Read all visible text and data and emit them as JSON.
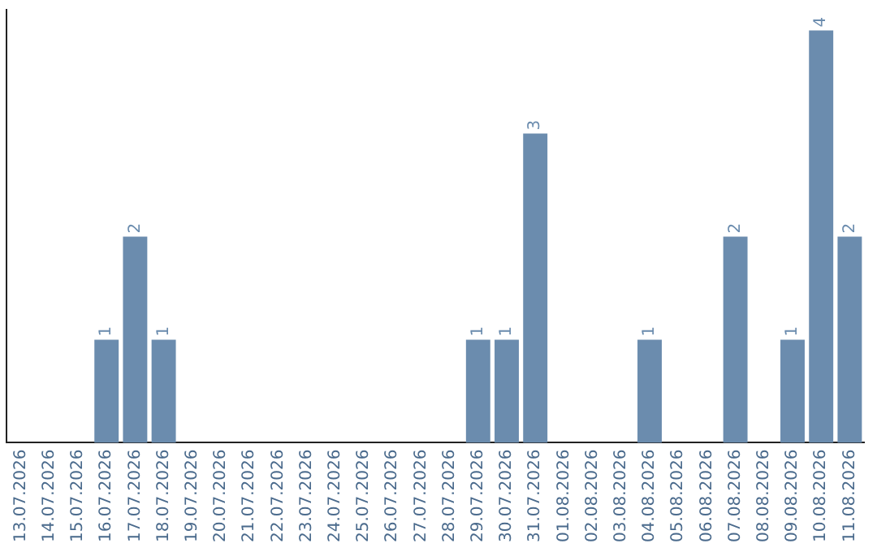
{
  "chart_data": {
    "type": "bar",
    "categories": [
      "13.07.2026",
      "14.07.2026",
      "15.07.2026",
      "16.07.2026",
      "17.07.2026",
      "18.07.2026",
      "19.07.2026",
      "20.07.2026",
      "21.07.2026",
      "22.07.2026",
      "23.07.2026",
      "24.07.2026",
      "25.07.2026",
      "26.07.2026",
      "27.07.2026",
      "28.07.2026",
      "29.07.2026",
      "30.07.2026",
      "31.07.2026",
      "01.08.2026",
      "02.08.2026",
      "03.08.2026",
      "04.08.2026",
      "05.08.2026",
      "06.08.2026",
      "07.08.2026",
      "08.08.2026",
      "09.08.2026",
      "10.08.2026",
      "11.08.2026"
    ],
    "values": [
      0,
      0,
      0,
      1,
      2,
      1,
      0,
      0,
      0,
      0,
      0,
      0,
      0,
      0,
      0,
      0,
      1,
      1,
      3,
      0,
      0,
      0,
      1,
      0,
      0,
      2,
      0,
      1,
      4,
      2
    ],
    "value_labels": [
      null,
      null,
      null,
      "1",
      "2",
      "1",
      null,
      null,
      null,
      null,
      null,
      null,
      null,
      null,
      null,
      null,
      "1",
      "1",
      "3",
      null,
      null,
      null,
      "1",
      null,
      null,
      "2",
      null,
      "1",
      "4",
      "2"
    ],
    "color": "#6b8cae",
    "ylim": [
      0,
      4.2
    ],
    "tick_labels": "x",
    "grid": false,
    "legend": false
  }
}
